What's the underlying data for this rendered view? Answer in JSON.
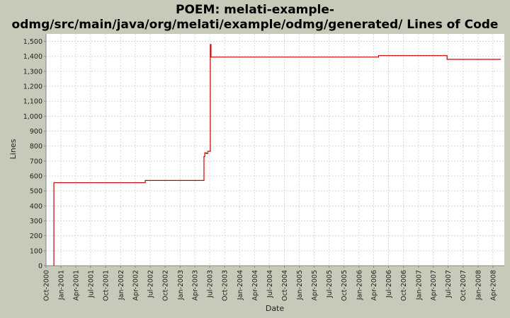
{
  "chart_data": {
    "type": "line",
    "title_line1": "POEM: melati-example-",
    "title_line2": "odmg/src/main/java/org/melati/example/odmg/generated/ Lines of Code",
    "xlabel": "Date",
    "ylabel": "Lines",
    "ylim": [
      0,
      1550
    ],
    "y_ticks": [
      0,
      100,
      200,
      300,
      400,
      500,
      600,
      700,
      800,
      900,
      1000,
      1100,
      1200,
      1300,
      1400,
      1500
    ],
    "y_tick_labels": [
      "0",
      "100",
      "200",
      "300",
      "400",
      "500",
      "600",
      "700",
      "800",
      "900",
      "1,000",
      "1,100",
      "1,200",
      "1,300",
      "1,400",
      "1,500"
    ],
    "x_range": [
      "2000-10-01",
      "2008-06-10"
    ],
    "x_ticks": [
      "2000-10-01",
      "2001-01-01",
      "2001-04-01",
      "2001-07-01",
      "2001-10-01",
      "2002-01-01",
      "2002-04-01",
      "2002-07-01",
      "2002-10-01",
      "2003-01-01",
      "2003-04-01",
      "2003-07-01",
      "2003-10-01",
      "2004-01-01",
      "2004-04-01",
      "2004-07-01",
      "2004-10-01",
      "2005-01-01",
      "2005-04-01",
      "2005-07-01",
      "2005-10-01",
      "2006-01-01",
      "2006-04-01",
      "2006-07-01",
      "2006-10-01",
      "2007-01-01",
      "2007-04-01",
      "2007-07-01",
      "2007-10-01",
      "2008-01-01",
      "2008-04-01"
    ],
    "x_tick_labels": [
      "Oct-2000",
      "Jan-2001",
      "Apr-2001",
      "Jul-2001",
      "Oct-2001",
      "Jan-2002",
      "Apr-2002",
      "Jul-2002",
      "Oct-2002",
      "Jan-2003",
      "Apr-2003",
      "Jul-2003",
      "Oct-2003",
      "Jan-2004",
      "Apr-2004",
      "Jul-2004",
      "Oct-2004",
      "Jan-2005",
      "Apr-2005",
      "Jul-2005",
      "Oct-2005",
      "Jan-2006",
      "Apr-2006",
      "Jul-2006",
      "Oct-2006",
      "Jan-2007",
      "Apr-2007",
      "Jul-2007",
      "Oct-2007",
      "Jan-2008",
      "Apr-2008"
    ],
    "grid": true,
    "series": [
      {
        "color": "#cc0000",
        "step": true,
        "points": [
          [
            "2000-11-18",
            0
          ],
          [
            "2000-11-18",
            555
          ],
          [
            "2002-06-01",
            555
          ],
          [
            "2002-06-01",
            570
          ],
          [
            "2003-05-27",
            570
          ],
          [
            "2003-05-27",
            730
          ],
          [
            "2003-06-01",
            730
          ],
          [
            "2003-06-01",
            755
          ],
          [
            "2003-06-10",
            755
          ],
          [
            "2003-06-10",
            750
          ],
          [
            "2003-06-19",
            750
          ],
          [
            "2003-06-19",
            765
          ],
          [
            "2003-07-05",
            765
          ],
          [
            "2003-07-05",
            1480
          ],
          [
            "2003-07-09",
            1480
          ],
          [
            "2003-07-09",
            1395
          ],
          [
            "2006-05-01",
            1395
          ],
          [
            "2006-05-01",
            1405
          ],
          [
            "2007-06-25",
            1405
          ],
          [
            "2007-06-25",
            1380
          ],
          [
            "2008-05-20",
            1380
          ]
        ]
      }
    ]
  }
}
